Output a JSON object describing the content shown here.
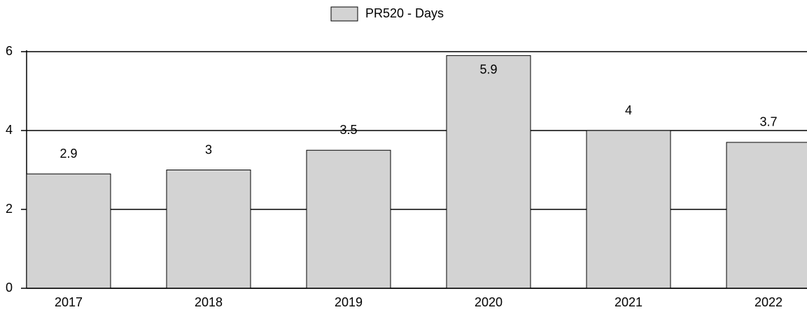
{
  "chart_data": {
    "type": "bar",
    "categories": [
      "2017",
      "2018",
      "2019",
      "2020",
      "2021",
      "2022"
    ],
    "series": [
      {
        "name": "PR520 - Days",
        "color": "#d3d3d3",
        "values": [
          2.9,
          3,
          3.5,
          5.9,
          4,
          3.7
        ]
      }
    ],
    "ylim": [
      0,
      6
    ],
    "yticks": [
      0,
      2,
      4,
      6
    ],
    "grid": true,
    "legend": "top"
  }
}
